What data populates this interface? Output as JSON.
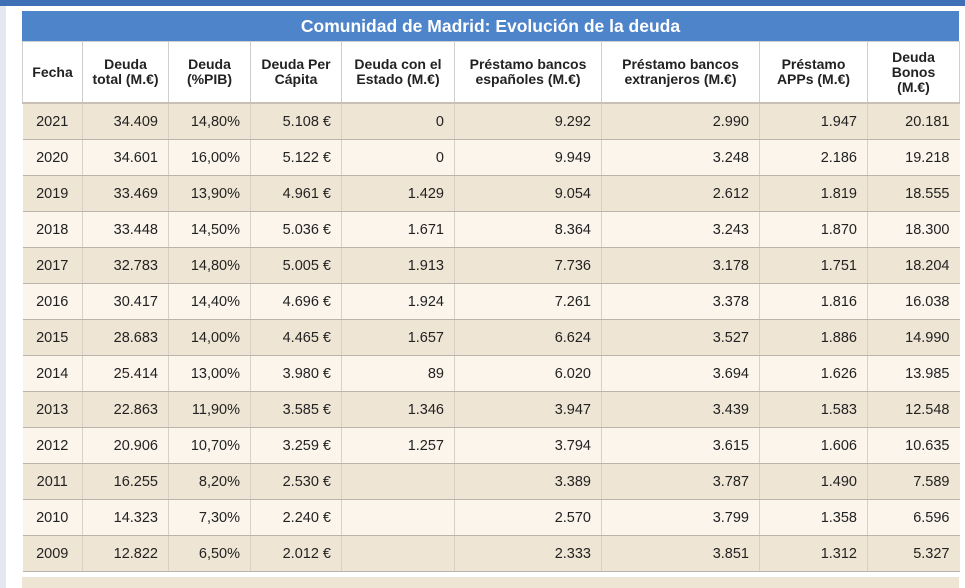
{
  "chart_data": {
    "type": "table",
    "title": "Comunidad de Madrid: Evolución de la deuda",
    "columns": [
      {
        "l1": "Fecha",
        "l2": "",
        "l3": ""
      },
      {
        "l1": "Deuda",
        "l2": "total (M.€)",
        "l3": ""
      },
      {
        "l1": "Deuda",
        "l2": "(%PIB)",
        "l3": ""
      },
      {
        "l1": "Deuda Per",
        "l2": "Cápita",
        "l3": ""
      },
      {
        "l1": "Deuda con el",
        "l2": "Estado (M.€)",
        "l3": ""
      },
      {
        "l1": "Préstamo bancos",
        "l2": "españoles (M.€)",
        "l3": ""
      },
      {
        "l1": "Préstamo bancos",
        "l2": "extranjeros (M.€)",
        "l3": ""
      },
      {
        "l1": "Préstamo",
        "l2": "APPs (M.€)",
        "l3": ""
      },
      {
        "l1": "Deuda",
        "l2": "Bonos",
        "l3": "(M.€)"
      }
    ],
    "rows": [
      [
        "2021",
        "34.409",
        "14,80%",
        "5.108 €",
        "0",
        "9.292",
        "2.990",
        "1.947",
        "20.181"
      ],
      [
        "2020",
        "34.601",
        "16,00%",
        "5.122 €",
        "0",
        "9.949",
        "3.248",
        "2.186",
        "19.218"
      ],
      [
        "2019",
        "33.469",
        "13,90%",
        "4.961 €",
        "1.429",
        "9.054",
        "2.612",
        "1.819",
        "18.555"
      ],
      [
        "2018",
        "33.448",
        "14,50%",
        "5.036 €",
        "1.671",
        "8.364",
        "3.243",
        "1.870",
        "18.300"
      ],
      [
        "2017",
        "32.783",
        "14,80%",
        "5.005 €",
        "1.913",
        "7.736",
        "3.178",
        "1.751",
        "18.204"
      ],
      [
        "2016",
        "30.417",
        "14,40%",
        "4.696 €",
        "1.924",
        "7.261",
        "3.378",
        "1.816",
        "16.038"
      ],
      [
        "2015",
        "28.683",
        "14,00%",
        "4.465 €",
        "1.657",
        "6.624",
        "3.527",
        "1.886",
        "14.990"
      ],
      [
        "2014",
        "25.414",
        "13,00%",
        "3.980 €",
        "89",
        "6.020",
        "3.694",
        "1.626",
        "13.985"
      ],
      [
        "2013",
        "22.863",
        "11,90%",
        "3.585 €",
        "1.346",
        "3.947",
        "3.439",
        "1.583",
        "12.548"
      ],
      [
        "2012",
        "20.906",
        "10,70%",
        "3.259 €",
        "1.257",
        "3.794",
        "3.615",
        "1.606",
        "10.635"
      ],
      [
        "2011",
        "16.255",
        "8,20%",
        "2.530 €",
        "",
        "3.389",
        "3.787",
        "1.490",
        "7.589"
      ],
      [
        "2010",
        "14.323",
        "7,30%",
        "2.240 €",
        "",
        "2.570",
        "3.799",
        "1.358",
        "6.596"
      ],
      [
        "2009",
        "12.822",
        "6,50%",
        "2.012 €",
        "",
        "2.333",
        "3.851",
        "1.312",
        "5.327"
      ]
    ]
  }
}
